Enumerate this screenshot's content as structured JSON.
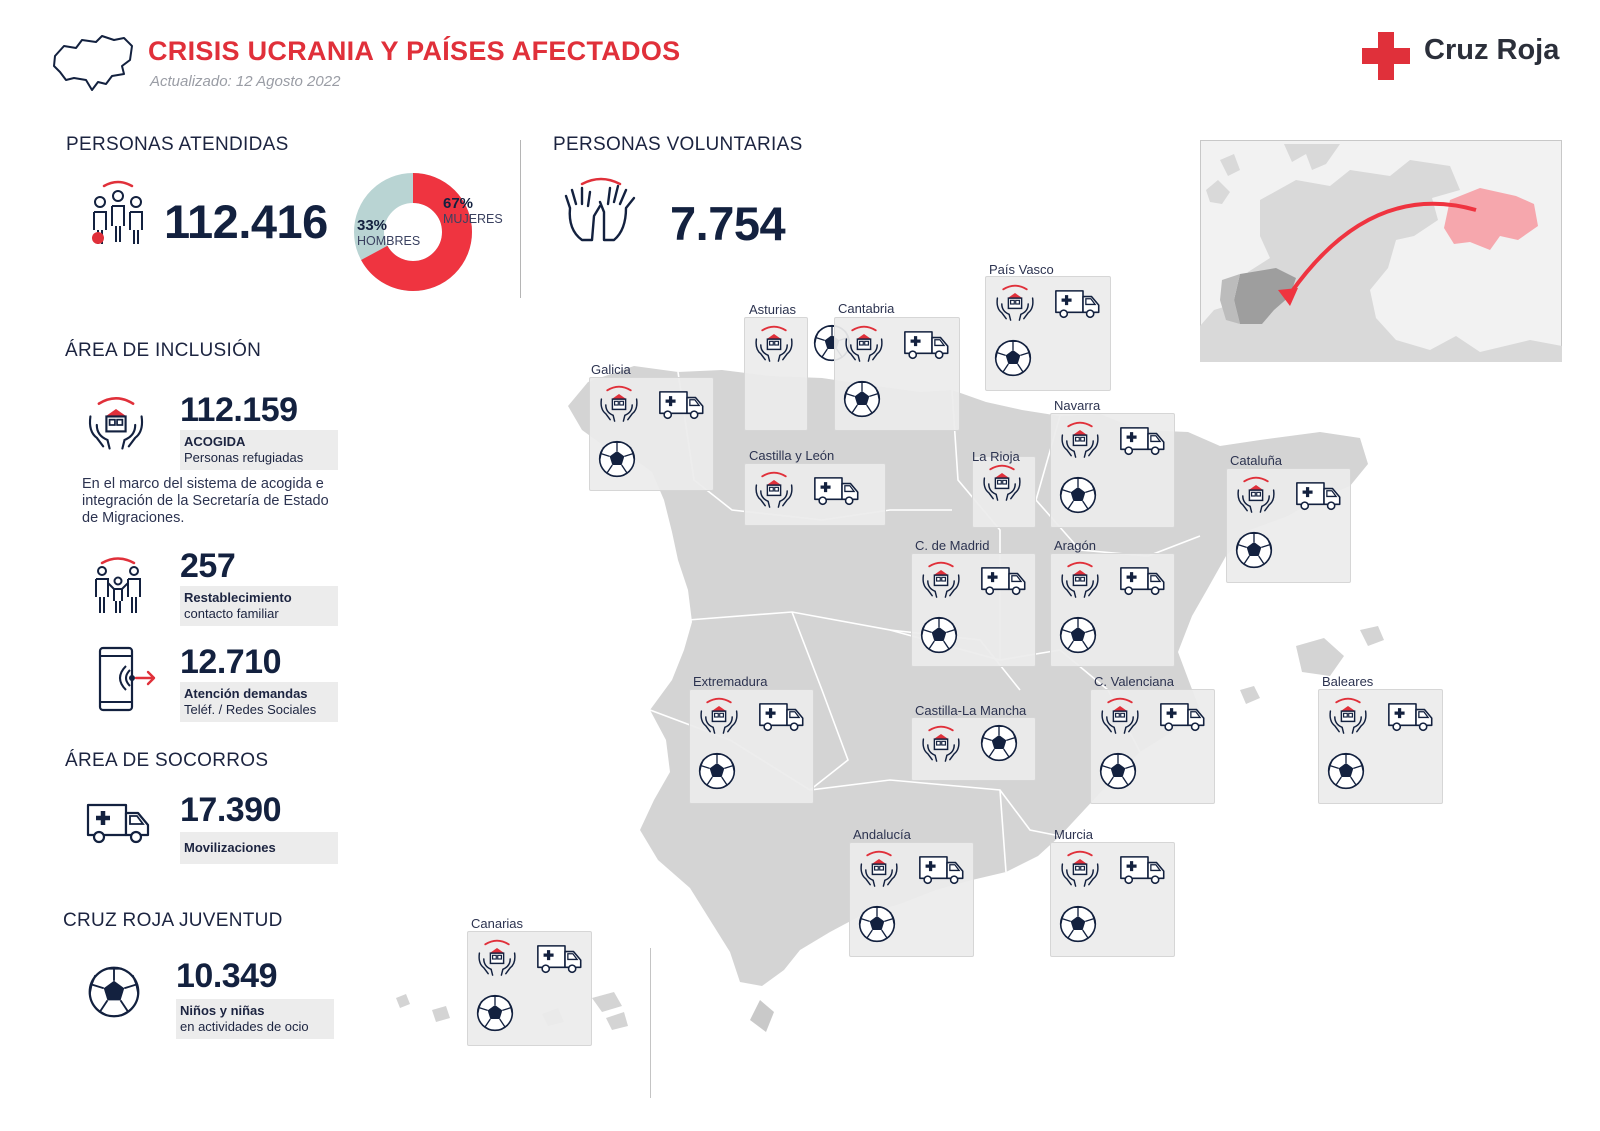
{
  "header": {
    "title": "CRISIS UCRANIA Y PAÍSES AFECTADOS",
    "updated": "Actualizado: 12 Agosto 2022",
    "brand": "Cruz Roja",
    "brand_color": "#e0303a"
  },
  "atendidas": {
    "heading": "PERSONAS ATENDIDAS",
    "value": "112.416",
    "donut": {
      "women_pct_value": 67,
      "men_pct_value": 33,
      "women_pct": "67%",
      "women_label": "MUJERES",
      "men_pct": "33%",
      "men_label": "HOMBRES",
      "women_color": "#ef3440",
      "men_color": "#b9d4d3"
    }
  },
  "voluntarias": {
    "heading": "PERSONAS VOLUNTARIAS",
    "value": "7.754"
  },
  "inclusion": {
    "heading": "ÁREA DE INCLUSIÓN",
    "acogida": {
      "value": "112.159",
      "label_bold": "ACOGIDA",
      "label": "Personas refugiadas"
    },
    "note": "En el marco del sistema de acogida e integración de la Secretaría de Estado de Migraciones.",
    "familiar": {
      "value": "257",
      "label_bold": "Restablecimiento",
      "label": "contacto familiar"
    },
    "demandas": {
      "value": "12.710",
      "label_bold": "Atención demandas",
      "label": "Teléf. / Redes Sociales"
    }
  },
  "socorros": {
    "heading": "ÁREA DE SOCORROS",
    "value": "17.390",
    "label_bold": "Movilizaciones"
  },
  "juventud": {
    "heading": "CRUZ ROJA JUVENTUD",
    "value": "10.349",
    "label_bold": "Niños y niñas",
    "label": "en actividades de ocio"
  },
  "regions": [
    {
      "name": "Galicia",
      "services": [
        "acogida",
        "ambulance",
        "ball"
      ]
    },
    {
      "name": "Asturias",
      "services": [
        "acogida",
        "ball"
      ]
    },
    {
      "name": "Cantabria",
      "services": [
        "acogida",
        "ambulance",
        "ball"
      ]
    },
    {
      "name": "País Vasco",
      "services": [
        "acogida",
        "ambulance",
        "ball"
      ]
    },
    {
      "name": "Navarra",
      "services": [
        "acogida",
        "ambulance",
        "ball"
      ]
    },
    {
      "name": "La Rioja",
      "services": [
        "acogida"
      ]
    },
    {
      "name": "Castilla y León",
      "services": [
        "acogida",
        "ambulance"
      ]
    },
    {
      "name": "Cataluña",
      "services": [
        "acogida",
        "ambulance",
        "ball"
      ]
    },
    {
      "name": "C. de Madrid",
      "services": [
        "acogida",
        "ambulance",
        "ball"
      ]
    },
    {
      "name": "Aragón",
      "services": [
        "acogida",
        "ambulance",
        "ball"
      ]
    },
    {
      "name": "Extremadura",
      "services": [
        "acogida",
        "ambulance",
        "ball"
      ]
    },
    {
      "name": "Castilla-La Mancha",
      "services": [
        "acogida",
        "ball"
      ]
    },
    {
      "name": "C. Valenciana",
      "services": [
        "acogida",
        "ambulance",
        "ball"
      ]
    },
    {
      "name": "Baleares",
      "services": [
        "acogida",
        "ambulance",
        "ball"
      ]
    },
    {
      "name": "Andalucía",
      "services": [
        "acogida",
        "ambulance",
        "ball"
      ]
    },
    {
      "name": "Murcia",
      "services": [
        "acogida",
        "ambulance",
        "ball"
      ]
    },
    {
      "name": "Canarias",
      "services": [
        "acogida",
        "ambulance",
        "ball"
      ]
    }
  ],
  "colors": {
    "accent": "#e0303a",
    "navy": "#13213f",
    "map_gray": "#d4d4d4",
    "ukraine": "#f6a7ad"
  },
  "icons": [
    "ukraine-outline-icon",
    "red-cross-icon",
    "family-icon",
    "hands-icon",
    "shelter-hands-icon",
    "family-link-icon",
    "phone-icon",
    "ambulance-icon",
    "ball-icon",
    "europe-map-icon"
  ]
}
